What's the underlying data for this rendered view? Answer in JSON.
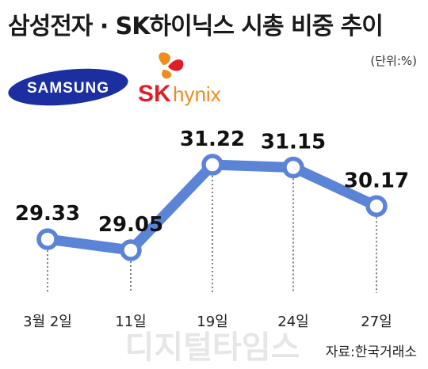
{
  "header": {
    "title": "삼성전자 · SK하이닉스 시총 비중 추이",
    "unit": "(단위:%)"
  },
  "logos": {
    "samsung_text": "SAMSUNG",
    "skhynix_sk": "SK",
    "skhynix_hynix": "hynix"
  },
  "footer": {
    "source": "자료:한국거래소",
    "watermark": "디지털타임스"
  },
  "colors": {
    "line": "#5b83d6",
    "marker_fill": "#ffffff",
    "samsung_logo": "#1b2fa0",
    "sk_red": "#e01e2a",
    "sk_orange": "#f08c1e"
  },
  "chart_data": {
    "type": "line",
    "title": "삼성전자 · SK하이닉스 시총 비중 추이",
    "categories": [
      "3월 2일",
      "11일",
      "19일",
      "24일",
      "27일"
    ],
    "values": [
      29.33,
      29.05,
      31.22,
      31.15,
      30.17
    ],
    "data_labels": [
      "29.33",
      "29.05",
      "31.22",
      "31.15",
      "30.17"
    ],
    "ylabel": "",
    "xlabel": "",
    "grid": false,
    "legend": "none"
  }
}
